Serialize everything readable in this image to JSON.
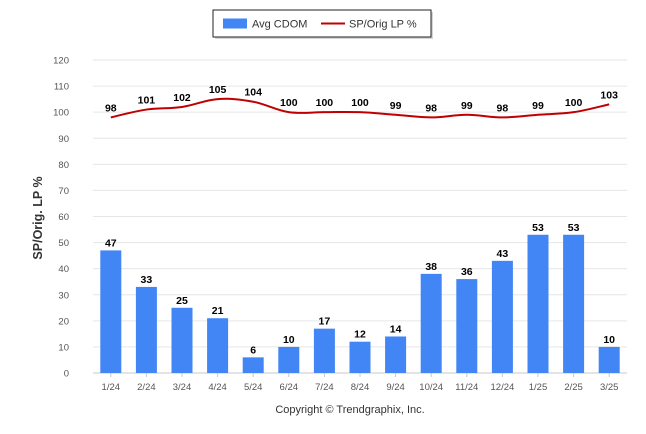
{
  "chart_data": {
    "type": "bar",
    "categories": [
      "1/24",
      "2/24",
      "3/24",
      "4/24",
      "5/24",
      "6/24",
      "7/24",
      "8/24",
      "9/24",
      "10/24",
      "11/24",
      "12/24",
      "1/25",
      "2/25",
      "3/25"
    ],
    "series": [
      {
        "name": "Avg CDOM",
        "type": "bar",
        "color": "#4285f4",
        "values": [
          47,
          33,
          25,
          21,
          6,
          10,
          17,
          12,
          14,
          38,
          36,
          43,
          53,
          53,
          10
        ]
      },
      {
        "name": "SP/Orig LP %",
        "type": "line",
        "color": "#c00000",
        "values": [
          98,
          101,
          102,
          105,
          104,
          100,
          100,
          100,
          99,
          98,
          99,
          98,
          99,
          100,
          103
        ]
      }
    ],
    "ylabel": "SP/Orig. LP %",
    "xlabel": "",
    "ylim": [
      0,
      120
    ],
    "yticks": [
      0,
      10,
      20,
      30,
      40,
      50,
      60,
      70,
      80,
      90,
      100,
      110,
      120
    ],
    "grid": true,
    "legend_position": "top-center",
    "data_labels": true
  },
  "footer": {
    "copyright": "Copyright © Trendgraphix, Inc."
  }
}
